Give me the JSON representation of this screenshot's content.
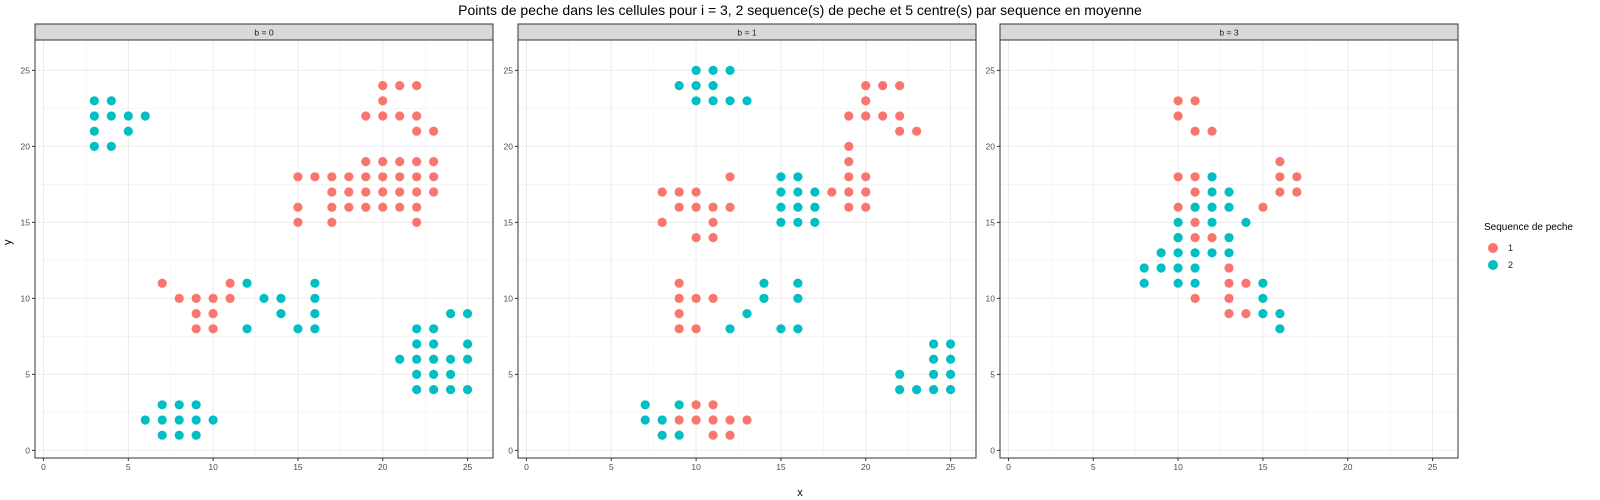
{
  "chart_data": {
    "type": "scatter",
    "title": "Points de peche dans les cellules pour i = 3, 2 sequence(s) de peche et 5 centre(s) par sequence en moyenne",
    "xlabel": "x",
    "ylabel": "y",
    "xlim": [
      -0.5,
      26.5
    ],
    "ylim": [
      -0.5,
      27
    ],
    "x_ticks": [
      0,
      5,
      10,
      15,
      20,
      25
    ],
    "y_ticks": [
      0,
      5,
      10,
      15,
      20,
      25
    ],
    "grid": true,
    "legend": {
      "title": "Sequence de peche",
      "placement": "right",
      "items": [
        {
          "label": "1",
          "color": "#F8766D"
        },
        {
          "label": "2",
          "color": "#00BFC4"
        }
      ]
    },
    "colors": {
      "1": "#F8766D",
      "2": "#00BFC4"
    },
    "panels": [
      {
        "label": "b = 0",
        "series": [
          {
            "name": "1",
            "points": [
              [
                20,
                24
              ],
              [
                21,
                24
              ],
              [
                22,
                24
              ],
              [
                20,
                23
              ],
              [
                19,
                22
              ],
              [
                20,
                22
              ],
              [
                21,
                22
              ],
              [
                22,
                22
              ],
              [
                22,
                21
              ],
              [
                23,
                21
              ],
              [
                19,
                19
              ],
              [
                20,
                19
              ],
              [
                21,
                19
              ],
              [
                22,
                19
              ],
              [
                23,
                19
              ],
              [
                15,
                18
              ],
              [
                16,
                18
              ],
              [
                17,
                18
              ],
              [
                18,
                18
              ],
              [
                19,
                18
              ],
              [
                20,
                18
              ],
              [
                21,
                18
              ],
              [
                22,
                18
              ],
              [
                23,
                18
              ],
              [
                17,
                17
              ],
              [
                18,
                17
              ],
              [
                19,
                17
              ],
              [
                20,
                17
              ],
              [
                21,
                17
              ],
              [
                22,
                17
              ],
              [
                23,
                17
              ],
              [
                15,
                16
              ],
              [
                17,
                16
              ],
              [
                18,
                16
              ],
              [
                19,
                16
              ],
              [
                20,
                16
              ],
              [
                21,
                16
              ],
              [
                22,
                16
              ],
              [
                15,
                15
              ],
              [
                17,
                15
              ],
              [
                22,
                15
              ],
              [
                7,
                11
              ],
              [
                11,
                11
              ],
              [
                8,
                10
              ],
              [
                9,
                10
              ],
              [
                10,
                10
              ],
              [
                11,
                10
              ],
              [
                9,
                9
              ],
              [
                10,
                9
              ],
              [
                9,
                8
              ],
              [
                10,
                8
              ]
            ]
          },
          {
            "name": "2",
            "points": [
              [
                3,
                23
              ],
              [
                4,
                23
              ],
              [
                3,
                22
              ],
              [
                4,
                22
              ],
              [
                5,
                22
              ],
              [
                6,
                22
              ],
              [
                3,
                21
              ],
              [
                5,
                21
              ],
              [
                3,
                20
              ],
              [
                4,
                20
              ],
              [
                12,
                11
              ],
              [
                16,
                11
              ],
              [
                13,
                10
              ],
              [
                14,
                10
              ],
              [
                16,
                10
              ],
              [
                14,
                9
              ],
              [
                16,
                9
              ],
              [
                12,
                8
              ],
              [
                15,
                8
              ],
              [
                16,
                8
              ],
              [
                24,
                9
              ],
              [
                25,
                9
              ],
              [
                22,
                8
              ],
              [
                23,
                8
              ],
              [
                22,
                7
              ],
              [
                23,
                7
              ],
              [
                25,
                7
              ],
              [
                21,
                6
              ],
              [
                22,
                6
              ],
              [
                23,
                6
              ],
              [
                24,
                6
              ],
              [
                25,
                6
              ],
              [
                22,
                5
              ],
              [
                23,
                5
              ],
              [
                24,
                5
              ],
              [
                22,
                4
              ],
              [
                23,
                4
              ],
              [
                24,
                4
              ],
              [
                25,
                4
              ],
              [
                7,
                3
              ],
              [
                8,
                3
              ],
              [
                9,
                3
              ],
              [
                6,
                2
              ],
              [
                7,
                2
              ],
              [
                8,
                2
              ],
              [
                9,
                2
              ],
              [
                10,
                2
              ],
              [
                7,
                1
              ],
              [
                8,
                1
              ],
              [
                9,
                1
              ]
            ]
          }
        ]
      },
      {
        "label": "b = 1",
        "series": [
          {
            "name": "1",
            "points": [
              [
                20,
                24
              ],
              [
                21,
                24
              ],
              [
                22,
                24
              ],
              [
                20,
                23
              ],
              [
                19,
                22
              ],
              [
                20,
                22
              ],
              [
                21,
                22
              ],
              [
                22,
                22
              ],
              [
                22,
                21
              ],
              [
                23,
                21
              ],
              [
                19,
                20
              ],
              [
                19,
                19
              ],
              [
                19,
                18
              ],
              [
                20,
                18
              ],
              [
                18,
                17
              ],
              [
                19,
                17
              ],
              [
                20,
                17
              ],
              [
                19,
                16
              ],
              [
                20,
                16
              ],
              [
                8,
                17
              ],
              [
                9,
                17
              ],
              [
                10,
                17
              ],
              [
                9,
                16
              ],
              [
                10,
                16
              ],
              [
                11,
                16
              ],
              [
                12,
                16
              ],
              [
                12,
                18
              ],
              [
                8,
                15
              ],
              [
                11,
                15
              ],
              [
                10,
                14
              ],
              [
                11,
                14
              ],
              [
                9,
                11
              ],
              [
                9,
                10
              ],
              [
                10,
                10
              ],
              [
                11,
                10
              ],
              [
                9,
                9
              ],
              [
                9,
                8
              ],
              [
                10,
                8
              ],
              [
                10,
                3
              ],
              [
                11,
                3
              ],
              [
                9,
                2
              ],
              [
                10,
                2
              ],
              [
                11,
                2
              ],
              [
                12,
                2
              ],
              [
                13,
                2
              ],
              [
                11,
                1
              ],
              [
                12,
                1
              ]
            ]
          },
          {
            "name": "2",
            "points": [
              [
                10,
                25
              ],
              [
                11,
                25
              ],
              [
                12,
                25
              ],
              [
                9,
                24
              ],
              [
                10,
                24
              ],
              [
                11,
                24
              ],
              [
                10,
                23
              ],
              [
                11,
                23
              ],
              [
                12,
                23
              ],
              [
                13,
                23
              ],
              [
                15,
                18
              ],
              [
                16,
                18
              ],
              [
                15,
                17
              ],
              [
                16,
                17
              ],
              [
                17,
                17
              ],
              [
                15,
                16
              ],
              [
                16,
                16
              ],
              [
                17,
                16
              ],
              [
                15,
                15
              ],
              [
                16,
                15
              ],
              [
                17,
                15
              ],
              [
                14,
                11
              ],
              [
                16,
                11
              ],
              [
                14,
                10
              ],
              [
                16,
                10
              ],
              [
                13,
                9
              ],
              [
                12,
                8
              ],
              [
                15,
                8
              ],
              [
                16,
                8
              ],
              [
                24,
                7
              ],
              [
                25,
                7
              ],
              [
                24,
                6
              ],
              [
                25,
                6
              ],
              [
                22,
                5
              ],
              [
                24,
                5
              ],
              [
                25,
                5
              ],
              [
                22,
                4
              ],
              [
                23,
                4
              ],
              [
                24,
                4
              ],
              [
                25,
                4
              ],
              [
                7,
                3
              ],
              [
                9,
                3
              ],
              [
                7,
                2
              ],
              [
                8,
                2
              ],
              [
                8,
                1
              ],
              [
                9,
                1
              ]
            ]
          }
        ]
      },
      {
        "label": "b = 3",
        "series": [
          {
            "name": "1",
            "points": [
              [
                10,
                23
              ],
              [
                11,
                23
              ],
              [
                10,
                22
              ],
              [
                11,
                21
              ],
              [
                12,
                21
              ],
              [
                10,
                18
              ],
              [
                11,
                18
              ],
              [
                16,
                19
              ],
              [
                16,
                18
              ],
              [
                17,
                18
              ],
              [
                11,
                17
              ],
              [
                16,
                17
              ],
              [
                17,
                17
              ],
              [
                10,
                16
              ],
              [
                11,
                16
              ],
              [
                15,
                16
              ],
              [
                11,
                15
              ],
              [
                10,
                14
              ],
              [
                11,
                14
              ],
              [
                12,
                14
              ],
              [
                13,
                12
              ],
              [
                13,
                11
              ],
              [
                14,
                11
              ],
              [
                11,
                10
              ],
              [
                13,
                10
              ],
              [
                13,
                9
              ],
              [
                14,
                9
              ]
            ]
          },
          {
            "name": "2",
            "points": [
              [
                12,
                18
              ],
              [
                12,
                17
              ],
              [
                13,
                17
              ],
              [
                11,
                16
              ],
              [
                12,
                16
              ],
              [
                13,
                16
              ],
              [
                10,
                15
              ],
              [
                12,
                15
              ],
              [
                14,
                15
              ],
              [
                10,
                14
              ],
              [
                13,
                14
              ],
              [
                9,
                13
              ],
              [
                10,
                13
              ],
              [
                11,
                13
              ],
              [
                12,
                13
              ],
              [
                13,
                13
              ],
              [
                8,
                12
              ],
              [
                9,
                12
              ],
              [
                10,
                12
              ],
              [
                11,
                12
              ],
              [
                8,
                11
              ],
              [
                10,
                11
              ],
              [
                11,
                11
              ],
              [
                15,
                11
              ],
              [
                15,
                10
              ],
              [
                15,
                9
              ],
              [
                16,
                9
              ],
              [
                16,
                8
              ]
            ]
          }
        ]
      }
    ]
  }
}
